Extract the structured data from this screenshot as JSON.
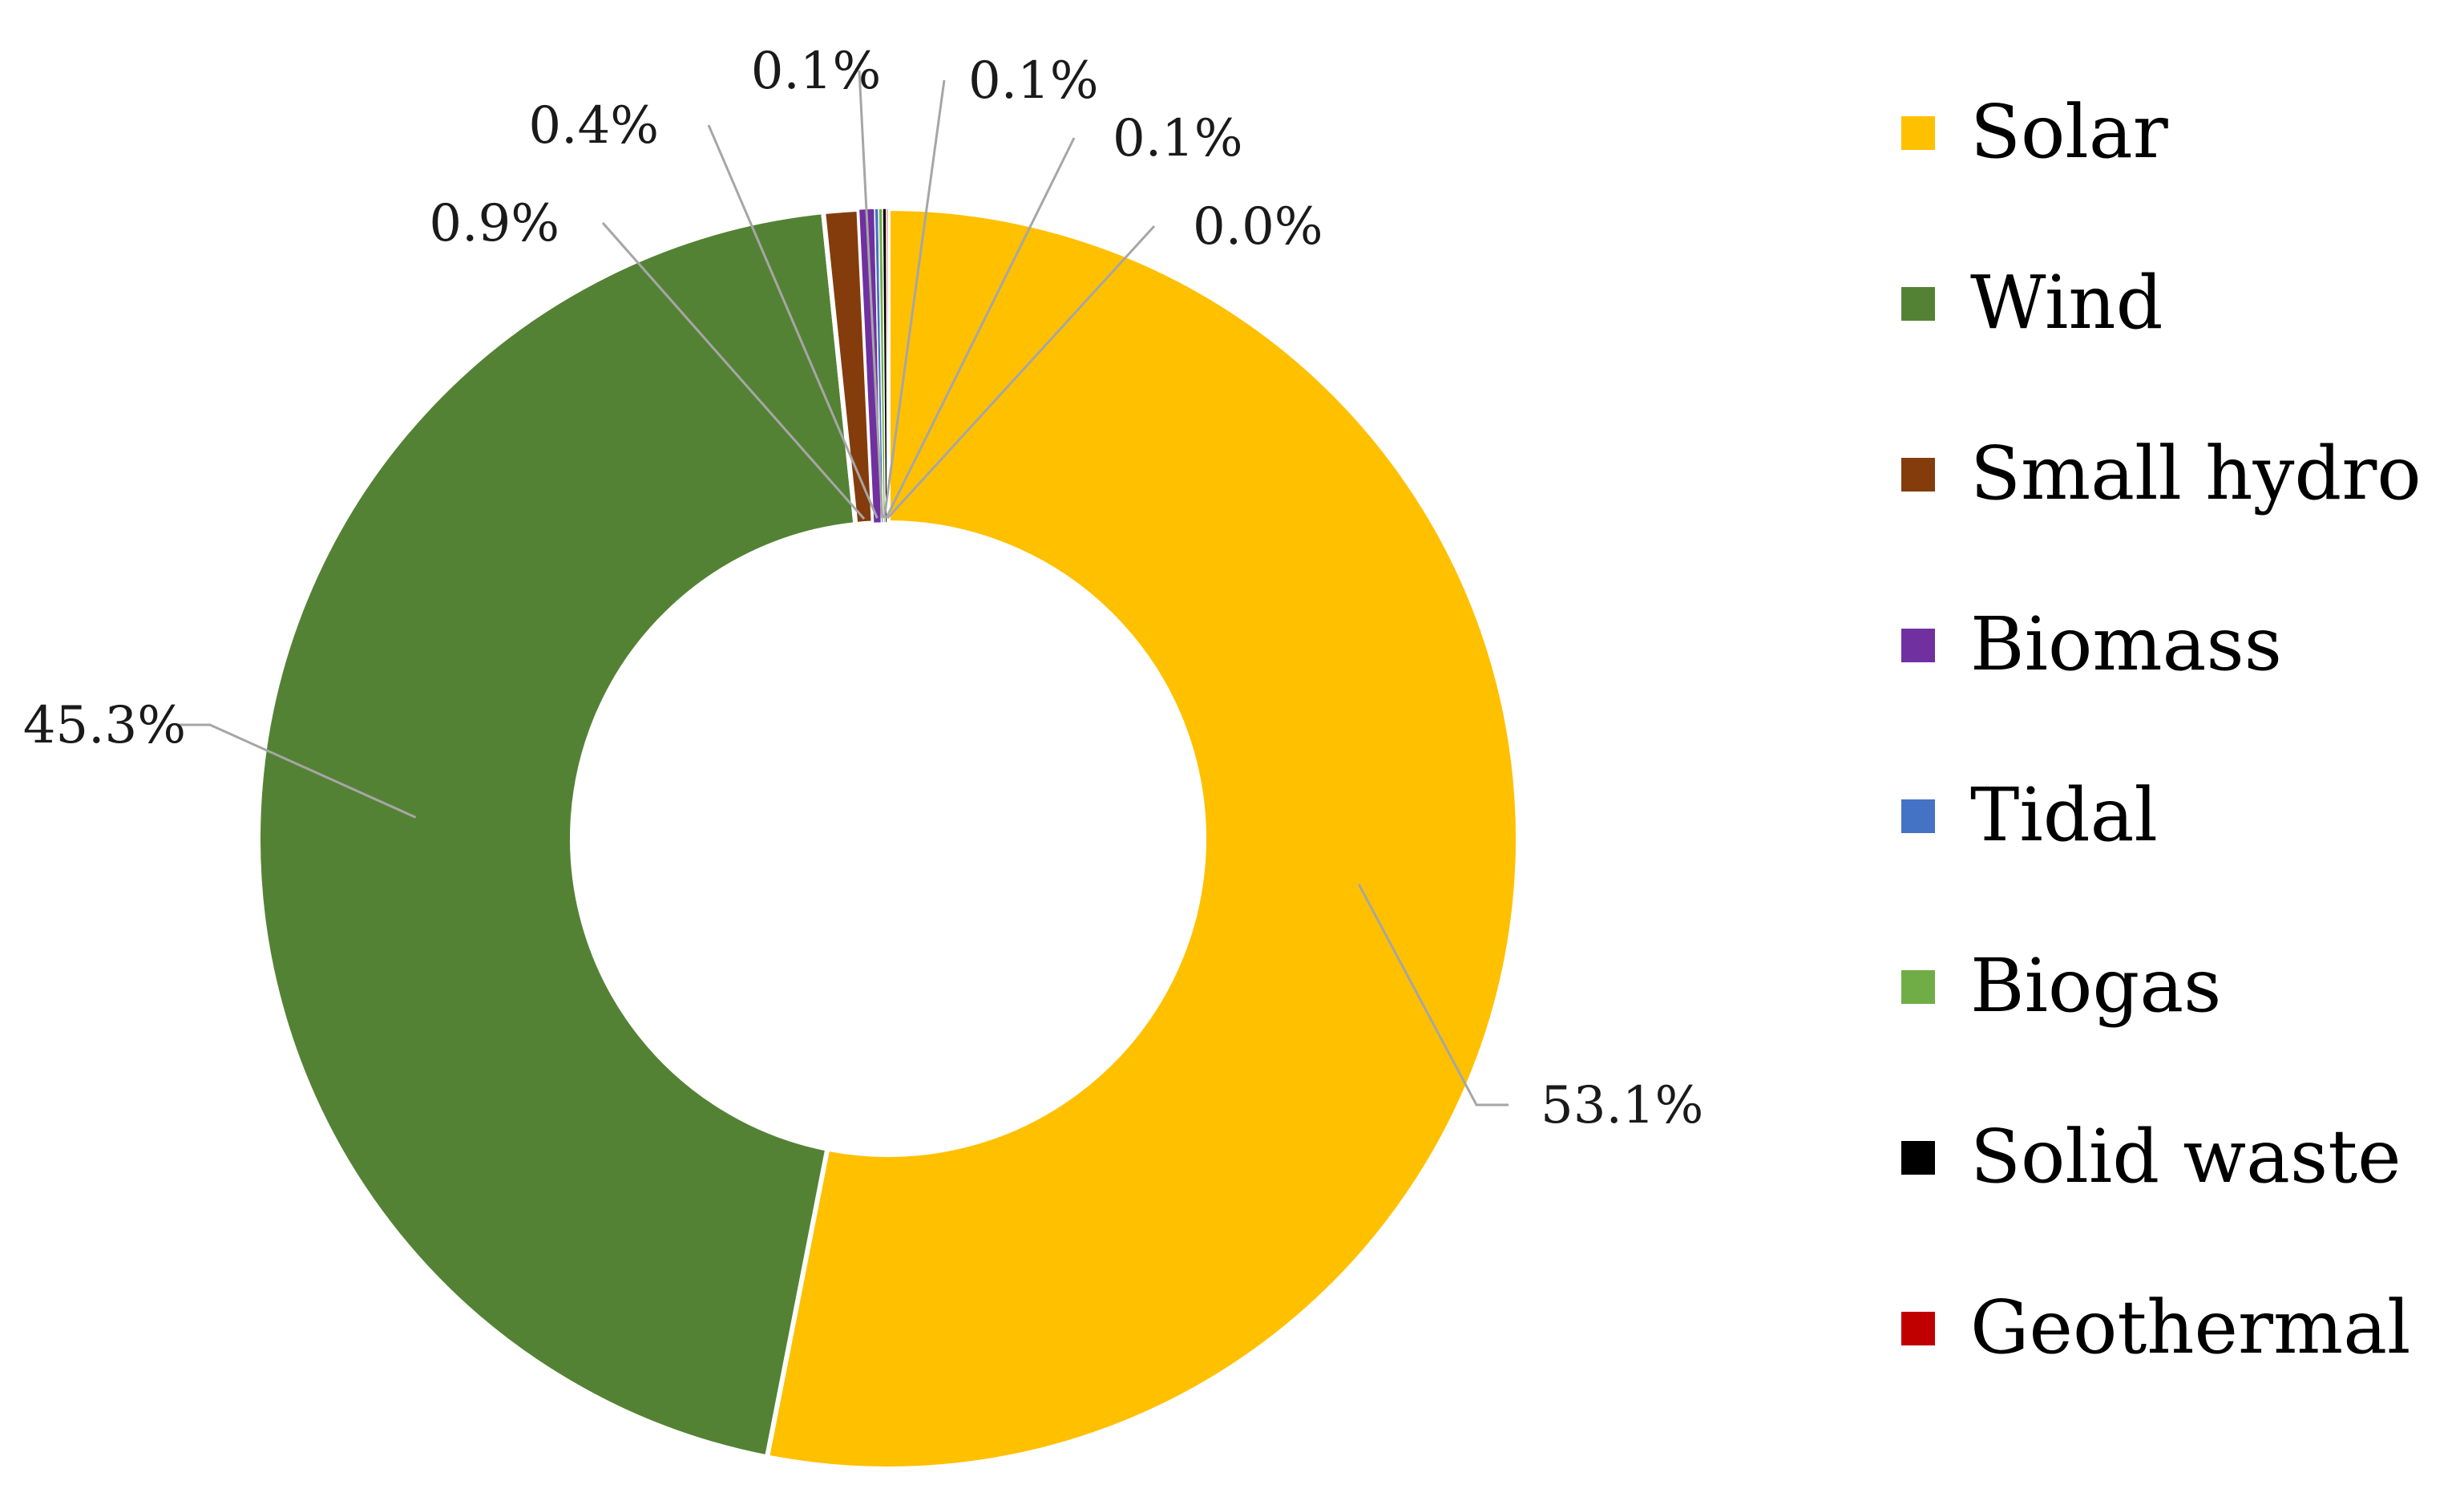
{
  "chart_data": {
    "type": "pie",
    "style": "donut",
    "categories": [
      "Solar",
      "Wind",
      "Small hydro",
      "Biomass",
      "Tidal",
      "Biogas",
      "Solid waste",
      "Geothermal"
    ],
    "values": [
      53.1,
      45.3,
      0.9,
      0.4,
      0.1,
      0.1,
      0.1,
      0.0
    ],
    "value_labels": [
      "53.1%",
      "45.3%",
      "0.9%",
      "0.4%",
      "0.1%",
      "0.1%",
      "0.1%",
      "0.0%"
    ],
    "colors": [
      "#FFC000",
      "#548235",
      "#843C0C",
      "#7030A0",
      "#4472C4",
      "#70AD47",
      "#000000",
      "#C00000"
    ],
    "legend_position": "right",
    "title": ""
  }
}
